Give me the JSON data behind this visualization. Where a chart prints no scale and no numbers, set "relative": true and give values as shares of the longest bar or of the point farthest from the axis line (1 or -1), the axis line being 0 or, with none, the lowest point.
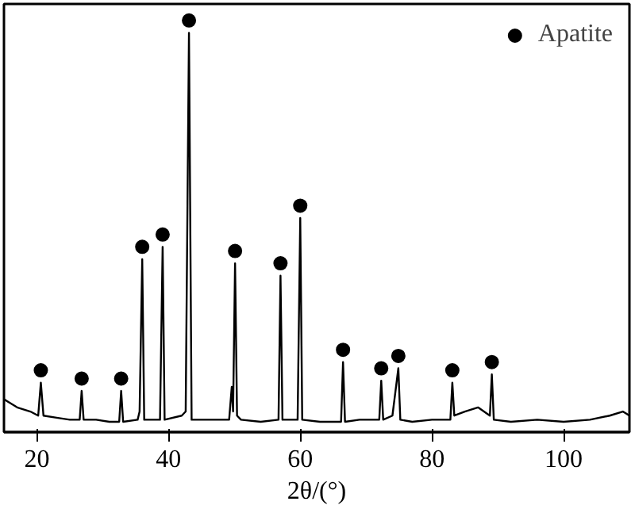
{
  "chart_data": {
    "type": "line",
    "xlabel": "2θ/(°)",
    "relative": true,
    "xlim": [
      15,
      110
    ],
    "xticks": [
      20,
      40,
      60,
      80,
      100
    ],
    "grid": false,
    "legend": "top right",
    "line_style": "solid",
    "series": [
      {
        "color": "#000000",
        "x": [
          15,
          17,
          19,
          20.2,
          20.6,
          21.0,
          23,
          25,
          26.5,
          26.8,
          27.1,
          29,
          31,
          32.5,
          32.8,
          33.1,
          35.3,
          35.6,
          36.0,
          36.3,
          38.7,
          39.1,
          39.4,
          42.0,
          42.6,
          43.1,
          43.5,
          46,
          49.2,
          49.6,
          49.8,
          50.1,
          50.4,
          51,
          54,
          56.7,
          57.0,
          57.3,
          59.6,
          60.0,
          60.3,
          63,
          66.2,
          66.5,
          66.8,
          69,
          72.0,
          72.3,
          72.6,
          74.0,
          74.9,
          75.2,
          77,
          80,
          82.8,
          83.1,
          83.4,
          85,
          87,
          88.8,
          89.1,
          89.4,
          92,
          96,
          100,
          104,
          107,
          109,
          110
        ],
        "values": [
          0.08,
          0.06,
          0.05,
          0.04,
          0.12,
          0.04,
          0.035,
          0.03,
          0.03,
          0.1,
          0.03,
          0.03,
          0.025,
          0.025,
          0.1,
          0.025,
          0.03,
          0.05,
          0.42,
          0.03,
          0.03,
          0.45,
          0.03,
          0.04,
          0.05,
          0.97,
          0.03,
          0.03,
          0.03,
          0.11,
          0.05,
          0.41,
          0.04,
          0.03,
          0.025,
          0.03,
          0.38,
          0.03,
          0.03,
          0.52,
          0.03,
          0.025,
          0.025,
          0.17,
          0.025,
          0.03,
          0.03,
          0.125,
          0.03,
          0.04,
          0.155,
          0.03,
          0.025,
          0.03,
          0.03,
          0.12,
          0.04,
          0.05,
          0.06,
          0.04,
          0.14,
          0.03,
          0.025,
          0.03,
          0.025,
          0.03,
          0.04,
          0.05,
          0.04
        ]
      },
      {
        "type": "scatter",
        "name": "Apatite",
        "color": "#000000",
        "marker": "circle",
        "x": [
          20.6,
          26.8,
          32.8,
          36.0,
          39.1,
          43.1,
          50.1,
          57.0,
          60.0,
          66.5,
          72.3,
          74.9,
          83.1,
          89.1
        ],
        "values": [
          0.15,
          0.13,
          0.13,
          0.45,
          0.48,
          1.0,
          0.44,
          0.41,
          0.55,
          0.2,
          0.155,
          0.185,
          0.15,
          0.17
        ]
      }
    ]
  }
}
